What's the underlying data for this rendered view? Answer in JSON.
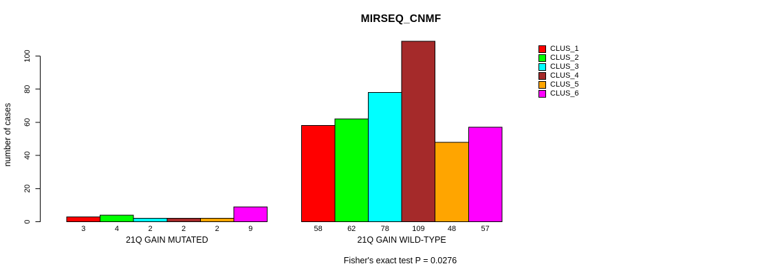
{
  "chart_data": {
    "type": "bar",
    "title": "MIRSEQ_CNMF",
    "ylabel": "number of cases",
    "xlabel_groups": [
      "21Q GAIN MUTATED",
      "21Q GAIN WILD-TYPE"
    ],
    "ylim": [
      0,
      110
    ],
    "yticks": [
      0,
      20,
      40,
      60,
      80,
      100
    ],
    "series": [
      {
        "name": "CLUS_1",
        "color": "#FF0000",
        "values": [
          3,
          58
        ]
      },
      {
        "name": "CLUS_2",
        "color": "#00FF00",
        "values": [
          4,
          62
        ]
      },
      {
        "name": "CLUS_3",
        "color": "#00FFFF",
        "values": [
          2,
          78
        ]
      },
      {
        "name": "CLUS_4",
        "color": "#A52A2A",
        "values": [
          2,
          109
        ]
      },
      {
        "name": "CLUS_5",
        "color": "#FFA500",
        "values": [
          2,
          48
        ]
      },
      {
        "name": "CLUS_6",
        "color": "#FF00FF",
        "values": [
          9,
          57
        ]
      }
    ],
    "bar_value_labels_shown": true,
    "annotation": "Fisher's exact test P = 0.0276",
    "legend_position": "top-right",
    "grid": false,
    "axis_color": "#000000",
    "bar_border_color": "#000000"
  }
}
